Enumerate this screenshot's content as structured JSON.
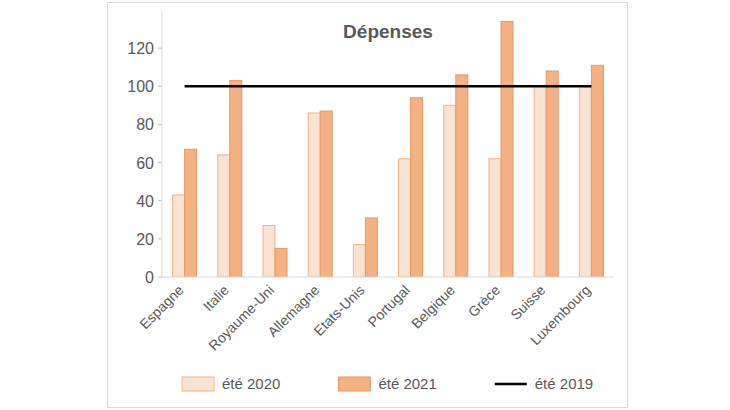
{
  "chart_data": {
    "type": "bar",
    "title": "Dépenses",
    "categories": [
      "Espagne",
      "Italie",
      "Royaume-Uni",
      "Allemagne",
      "Etats-Unis",
      "Portugal",
      "Belgique",
      "Grèce",
      "Suisse",
      "Luxembourg"
    ],
    "series": [
      {
        "name": "été 2020",
        "color": "#fbe3d4",
        "values": [
          43,
          64,
          27,
          86,
          17,
          62,
          90,
          62,
          100,
          100
        ]
      },
      {
        "name": "été 2021",
        "color": "#f4b183",
        "values": [
          67,
          103,
          15,
          87,
          31,
          94,
          106,
          134,
          108,
          111
        ]
      },
      {
        "name": "été 2019",
        "color": "#000000",
        "type": "line",
        "values": [
          100,
          100,
          100,
          100,
          100,
          100,
          100,
          100,
          100,
          100
        ]
      }
    ],
    "ylim": [
      0,
      140
    ],
    "yticks": [
      0,
      20,
      40,
      60,
      80,
      100,
      120
    ],
    "grid": false,
    "legend": "bottom"
  }
}
